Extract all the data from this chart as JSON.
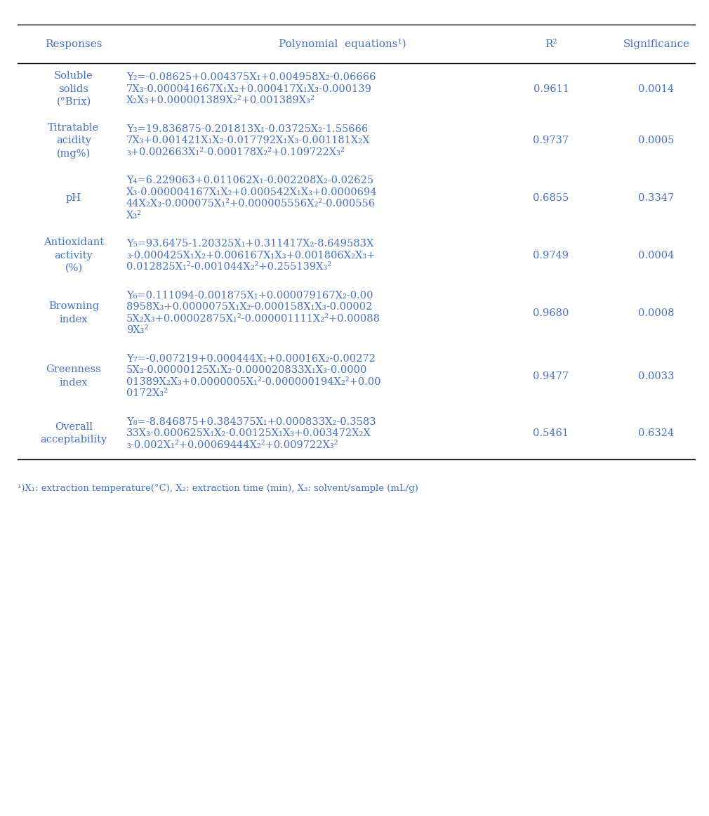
{
  "headers": [
    "Responses",
    "Polynomial equations¹)",
    "R²",
    "Significance"
  ],
  "rows": [
    {
      "response": "Soluble\nsolids\n(°Brix)",
      "equation_lines": [
        "Y₂=-0.08625+0.004375X₁+0.004958X₂-0.06666",
        "7X₃-0.000041667X₁X₂+0.000417X₁X₃-0.000139",
        "X₂X₃+0.000001389X₂²+0.001389X₃²"
      ],
      "r2": "0.9611",
      "sig": "0.0014",
      "nlines": 3
    },
    {
      "response": "Titratable\nacidity\n(mg%)",
      "equation_lines": [
        "Y₃=19.836875-0.201813X₁-0.03725X₂-1.55666",
        "7X₃+0.001421X₁X₂-0.017792X₁X₃-0.001181X₂X",
        "₃+0.002663X₁²-0.000178X₂²+0.109722X₃²"
      ],
      "r2": "0.9737",
      "sig": "0.0005",
      "nlines": 3
    },
    {
      "response": "pH",
      "equation_lines": [
        "Y₄=6.229063+0.011062X₁-0.002208X₂-0.02625",
        "X₃-0.000004167X₁X₂+0.000542X₁X₃+0.0000694",
        "44X₂X₃-0.000075X₁²+0.000005556X₂²-0.000556",
        "X₃²"
      ],
      "r2": "0.6855",
      "sig": "0.3347",
      "nlines": 4
    },
    {
      "response": "Antioxidant\nactivity\n(%)",
      "equation_lines": [
        "Y₅=93.6475-1.20325X₁+0.311417X₂-8.649583X",
        "₃-0.000425X₁X₂+0.006167X₁X₃+0.001806X₂X₃+",
        "0.012825X₁²-0.001044X₂²+0.255139X₃²"
      ],
      "r2": "0.9749",
      "sig": "0.0004",
      "nlines": 3
    },
    {
      "response": "Browning\nindex",
      "equation_lines": [
        "Y₆=0.111094-0.001875X₁+0.000079167X₂-0.00",
        "8958X₃+0.0000075X₁X₂-0.000158X₁X₃-0.00002",
        "5X₂X₃+0.00002875X₁²-0.000001111X₂²+0.00088",
        "9X₃²"
      ],
      "r2": "0.9680",
      "sig": "0.0008",
      "nlines": 4
    },
    {
      "response": "Greenness\nindex",
      "equation_lines": [
        "Y₇=-0.007219+0.000444X₁+0.00016X₂-0.00272",
        "5X₃-0.00000125X₁X₂-0.000020833X₁X₃-0.0000",
        "01389X₂X₃+0.0000005X₁²-0.000000194X₂²+0.00",
        "0172X₃²"
      ],
      "r2": "0.9477",
      "sig": "0.0033",
      "nlines": 4
    },
    {
      "response": "Overall\nacceptability",
      "equation_lines": [
        "Y₈=-8.846875+0.384375X₁+0.000833X₂-0.3583",
        "33X₃-0.000625X₁X₂-0.00125X₁X₃+0.003472X₂X",
        "₃-0.002X₁²+0.00069444X₂²+0.009722X₃²"
      ],
      "r2": "0.5461",
      "sig": "0.6324",
      "nlines": 3
    }
  ],
  "footnote": "¹)X₁: extraction temperature(°C), X₂: extraction time (min), X₃: solvent/sample (mL/g)",
  "text_color": "#4472C4",
  "background_color": "#FFFFFF",
  "font_size": 10.5,
  "header_font_size": 11
}
